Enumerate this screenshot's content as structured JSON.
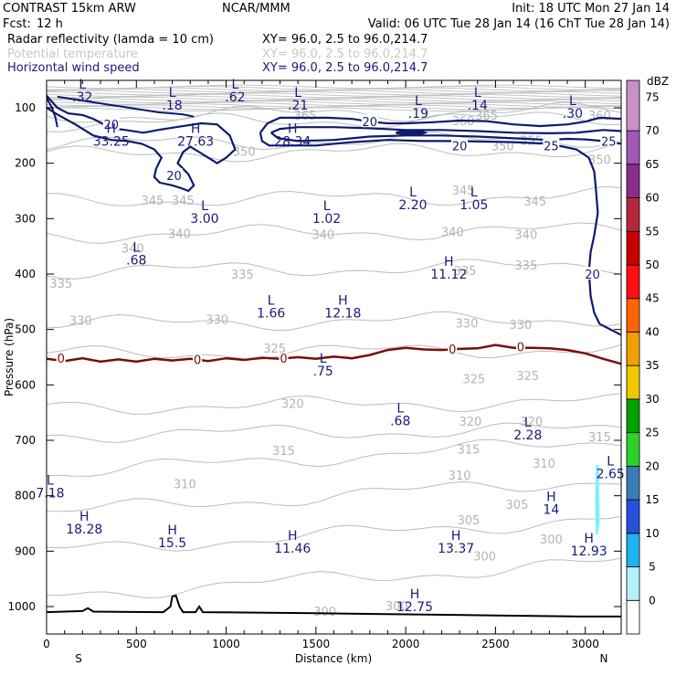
{
  "header": {
    "title": "CONTRAST 15km ARW",
    "center": "NCAR/MMM",
    "init": "Init: 18 UTC Mon 27 Jan 14",
    "fcst_label": "Fcst:",
    "fcst_value": "12 h",
    "valid": "Valid: 06 UTC Tue 28 Jan 14 (16 ChT Tue 28 Jan 14)"
  },
  "fields": [
    {
      "name": "Radar reflectivity (lamda = 10 cm)",
      "xy": "XY=  96.0,  2.5 to  96.0,214.7",
      "color": "#000000"
    },
    {
      "name": "Potential temperature",
      "xy": "XY=  96.0,  2.5 to  96.0,214.7",
      "color": "#c8c8c8"
    },
    {
      "name": "Horizontal wind speed",
      "xy": "XY=  96.0,  2.5 to  96.0,214.7",
      "color": "#1a1a7a"
    }
  ],
  "chart_data": {
    "type": "cross-section",
    "xlabel": "Distance (km)",
    "ylabel": "Pressure (hPa)",
    "xlim": [
      0,
      3200
    ],
    "ylim": [
      1050,
      55
    ],
    "x_ticks": [
      "0",
      "500",
      "1000",
      "1500",
      "2000",
      "2500",
      "3000"
    ],
    "y_ticks": [
      "100",
      "200",
      "300",
      "400",
      "500",
      "600",
      "700",
      "800",
      "900",
      "1000"
    ],
    "x_end_labels": {
      "left": "S",
      "right": "N"
    },
    "colorbar": {
      "unit": "dBZ",
      "levels": [
        "0",
        "5",
        "10",
        "15",
        "20",
        "25",
        "30",
        "35",
        "40",
        "45",
        "50",
        "55",
        "60",
        "65",
        "70",
        "75"
      ],
      "colors": [
        "#ffffff",
        "#b4f0fa",
        "#1eb4f0",
        "#2850dc",
        "#3c7cb4",
        "#2cd22c",
        "#00a000",
        "#f0c800",
        "#f0a000",
        "#ff6400",
        "#ff1010",
        "#c80000",
        "#b4283c",
        "#8c2c8c",
        "#a058b4",
        "#c890c8"
      ]
    },
    "theta_labels": [
      {
        "text": "365",
        "x": 1440,
        "p": 115
      },
      {
        "text": "365",
        "x": 2450,
        "p": 115
      },
      {
        "text": "360",
        "x": 2320,
        "p": 125
      },
      {
        "text": "360",
        "x": 3080,
        "p": 115
      },
      {
        "text": "355",
        "x": 2700,
        "p": 160
      },
      {
        "text": "350",
        "x": 1100,
        "p": 180
      },
      {
        "text": "350",
        "x": 2540,
        "p": 170
      },
      {
        "text": "350",
        "x": 3080,
        "p": 195
      },
      {
        "text": "345",
        "x": 590,
        "p": 268
      },
      {
        "text": "345",
        "x": 760,
        "p": 268
      },
      {
        "text": "345",
        "x": 2320,
        "p": 250
      },
      {
        "text": "345",
        "x": 2720,
        "p": 270
      },
      {
        "text": "340",
        "x": 480,
        "p": 355
      },
      {
        "text": "340",
        "x": 740,
        "p": 328
      },
      {
        "text": "340",
        "x": 1540,
        "p": 330
      },
      {
        "text": "340",
        "x": 2260,
        "p": 325
      },
      {
        "text": "340",
        "x": 2670,
        "p": 330
      },
      {
        "text": "335",
        "x": 80,
        "p": 418
      },
      {
        "text": "335",
        "x": 1090,
        "p": 402
      },
      {
        "text": "335",
        "x": 2330,
        "p": 395
      },
      {
        "text": "335",
        "x": 2670,
        "p": 385
      },
      {
        "text": "330",
        "x": 190,
        "p": 485
      },
      {
        "text": "330",
        "x": 950,
        "p": 483
      },
      {
        "text": "330",
        "x": 2340,
        "p": 490
      },
      {
        "text": "330",
        "x": 2640,
        "p": 492
      },
      {
        "text": "325",
        "x": 1270,
        "p": 535
      },
      {
        "text": "325",
        "x": 2380,
        "p": 590
      },
      {
        "text": "325",
        "x": 2680,
        "p": 585
      },
      {
        "text": "320",
        "x": 1370,
        "p": 635
      },
      {
        "text": "320",
        "x": 2360,
        "p": 667
      },
      {
        "text": "320",
        "x": 2700,
        "p": 667
      },
      {
        "text": "315",
        "x": 1320,
        "p": 720
      },
      {
        "text": "315",
        "x": 2350,
        "p": 717
      },
      {
        "text": "315",
        "x": 3080,
        "p": 695
      },
      {
        "text": "310",
        "x": 770,
        "p": 780
      },
      {
        "text": "310",
        "x": 2300,
        "p": 764
      },
      {
        "text": "310",
        "x": 2770,
        "p": 743
      },
      {
        "text": "305",
        "x": 2350,
        "p": 845
      },
      {
        "text": "305",
        "x": 2620,
        "p": 817
      },
      {
        "text": "300",
        "x": 2440,
        "p": 910
      },
      {
        "text": "300",
        "x": 2810,
        "p": 880
      },
      {
        "text": "300",
        "x": 1550,
        "p": 1010
      },
      {
        "text": "300",
        "x": 1950,
        "p": 1000
      }
    ],
    "hl_markers": [
      {
        "kind": "L",
        "value": ".32",
        "x": 200,
        "p": 65
      },
      {
        "kind": "L",
        "value": ".18",
        "x": 700,
        "p": 80
      },
      {
        "kind": "L",
        "value": ".62",
        "x": 1050,
        "p": 65
      },
      {
        "kind": "L",
        "value": ".21",
        "x": 1400,
        "p": 80
      },
      {
        "kind": "L",
        "value": ".19",
        "x": 2070,
        "p": 95
      },
      {
        "kind": "L",
        "value": ".14",
        "x": 2400,
        "p": 80
      },
      {
        "kind": "L",
        "value": ".30",
        "x": 2930,
        "p": 95
      },
      {
        "kind": "H",
        "value": "33.25",
        "x": 360,
        "p": 145
      },
      {
        "kind": "H",
        "value": "27.63",
        "x": 830,
        "p": 145
      },
      {
        "kind": "H",
        "value": "28.34",
        "x": 1370,
        "p": 145
      },
      {
        "kind": "L",
        "value": "3.00",
        "x": 880,
        "p": 285
      },
      {
        "kind": "L",
        "value": "1.02",
        "x": 1560,
        "p": 285
      },
      {
        "kind": "L",
        "value": "2.20",
        "x": 2040,
        "p": 260
      },
      {
        "kind": "L",
        "value": "1.05",
        "x": 2380,
        "p": 260
      },
      {
        "kind": "L",
        "value": ".68",
        "x": 500,
        "p": 360
      },
      {
        "kind": "H",
        "value": "11.12",
        "x": 2240,
        "p": 385
      },
      {
        "kind": "L",
        "value": "1.66",
        "x": 1250,
        "p": 455
      },
      {
        "kind": "H",
        "value": "12.18",
        "x": 1650,
        "p": 455
      },
      {
        "kind": "L",
        "value": ".75",
        "x": 1540,
        "p": 560
      },
      {
        "kind": "L",
        "value": ".68",
        "x": 1970,
        "p": 650
      },
      {
        "kind": "L",
        "value": "2.28",
        "x": 2680,
        "p": 675
      },
      {
        "kind": "L",
        "value": "2.65",
        "x": 3140,
        "p": 745
      },
      {
        "kind": "L",
        "value": "7.18",
        "x": 20,
        "p": 780
      },
      {
        "kind": "H",
        "value": "14",
        "x": 2810,
        "p": 810
      },
      {
        "kind": "H",
        "value": "18.28",
        "x": 210,
        "p": 845
      },
      {
        "kind": "H",
        "value": "15.5",
        "x": 700,
        "p": 870
      },
      {
        "kind": "H",
        "value": "11.46",
        "x": 1370,
        "p": 880
      },
      {
        "kind": "H",
        "value": "13.37",
        "x": 2280,
        "p": 880
      },
      {
        "kind": "H",
        "value": "12.93",
        "x": 3020,
        "p": 885
      },
      {
        "kind": "H",
        "value": "12.75",
        "x": 2050,
        "p": 985
      }
    ],
    "wind_contour_labels": [
      {
        "text": "20",
        "x": 360,
        "p": 130
      },
      {
        "text": "20",
        "x": 1800,
        "p": 125
      },
      {
        "text": "20",
        "x": 2300,
        "p": 168
      },
      {
        "text": "25",
        "x": 2810,
        "p": 168
      },
      {
        "text": "25",
        "x": 3130,
        "p": 160
      },
      {
        "text": "20",
        "x": 710,
        "p": 222
      },
      {
        "text": "20",
        "x": 3040,
        "p": 400
      }
    ],
    "zero_isotherm_labels": [
      {
        "text": "0",
        "x": 80,
        "p": 553
      },
      {
        "text": "0",
        "x": 840,
        "p": 556
      },
      {
        "text": "0",
        "x": 1320,
        "p": 553
      },
      {
        "text": "0",
        "x": 2260,
        "p": 537
      },
      {
        "text": "0",
        "x": 2640,
        "p": 533
      }
    ],
    "zero_isotherm": [
      [
        0,
        553
      ],
      [
        100,
        557
      ],
      [
        200,
        552
      ],
      [
        300,
        558
      ],
      [
        400,
        554
      ],
      [
        500,
        558
      ],
      [
        600,
        553
      ],
      [
        700,
        556
      ],
      [
        800,
        553
      ],
      [
        900,
        557
      ],
      [
        1000,
        552
      ],
      [
        1100,
        555
      ],
      [
        1200,
        551
      ],
      [
        1300,
        553
      ],
      [
        1400,
        550
      ],
      [
        1500,
        553
      ],
      [
        1600,
        549
      ],
      [
        1700,
        552
      ],
      [
        1800,
        546
      ],
      [
        1900,
        537
      ],
      [
        2000,
        533
      ],
      [
        2100,
        536
      ],
      [
        2200,
        537
      ],
      [
        2300,
        535
      ],
      [
        2400,
        534
      ],
      [
        2500,
        528
      ],
      [
        2600,
        533
      ],
      [
        2700,
        533
      ],
      [
        2800,
        534
      ],
      [
        2900,
        537
      ],
      [
        3000,
        543
      ],
      [
        3100,
        553
      ],
      [
        3200,
        562
      ]
    ],
    "terrain": [
      [
        0,
        1010
      ],
      [
        200,
        1008
      ],
      [
        230,
        1003
      ],
      [
        260,
        1009
      ],
      [
        650,
        1010
      ],
      [
        690,
        1000
      ],
      [
        700,
        982
      ],
      [
        720,
        980
      ],
      [
        740,
        1000
      ],
      [
        760,
        1010
      ],
      [
        830,
        1010
      ],
      [
        850,
        1000
      ],
      [
        870,
        1010
      ],
      [
        1500,
        1012
      ],
      [
        2000,
        1014
      ],
      [
        2500,
        1016
      ],
      [
        3000,
        1018
      ],
      [
        3200,
        1018
      ]
    ],
    "wind_20_contours": [
      [
        [
          0,
          78
        ],
        [
          60,
          100
        ],
        [
          120,
          110
        ],
        [
          200,
          113
        ],
        [
          260,
          120
        ],
        [
          360,
          137
        ],
        [
          440,
          140
        ],
        [
          540,
          145
        ],
        [
          620,
          140
        ],
        [
          700,
          136
        ],
        [
          780,
          132
        ],
        [
          860,
          128
        ],
        [
          950,
          130
        ],
        [
          1020,
          150
        ],
        [
          1050,
          175
        ],
        [
          1000,
          190
        ],
        [
          950,
          200
        ],
        [
          900,
          190
        ],
        [
          850,
          180
        ],
        [
          800,
          170
        ],
        [
          760,
          180
        ],
        [
          730,
          200
        ],
        [
          790,
          220
        ],
        [
          820,
          240
        ],
        [
          790,
          250
        ],
        [
          750,
          245
        ],
        [
          700,
          240
        ],
        [
          630,
          235
        ],
        [
          600,
          225
        ],
        [
          610,
          210
        ],
        [
          640,
          190
        ],
        [
          600,
          175
        ],
        [
          530,
          165
        ],
        [
          450,
          160
        ],
        [
          360,
          158
        ],
        [
          260,
          150
        ],
        [
          160,
          130
        ],
        [
          60,
          112
        ],
        [
          0,
          100
        ]
      ],
      [
        [
          1190,
          145
        ],
        [
          1230,
          128
        ],
        [
          1300,
          118
        ],
        [
          1420,
          118
        ],
        [
          1560,
          118
        ],
        [
          1700,
          120
        ],
        [
          1800,
          125
        ],
        [
          1900,
          128
        ],
        [
          2000,
          128
        ],
        [
          2150,
          126
        ],
        [
          2300,
          123
        ],
        [
          2450,
          124
        ],
        [
          2600,
          130
        ],
        [
          2750,
          133
        ],
        [
          2900,
          130
        ],
        [
          3000,
          125
        ],
        [
          3080,
          118
        ],
        [
          3200,
          120
        ]
      ],
      [
        [
          1190,
          145
        ],
        [
          1200,
          160
        ],
        [
          1240,
          168
        ],
        [
          1300,
          168
        ],
        [
          1500,
          168
        ],
        [
          1700,
          162
        ],
        [
          1900,
          158
        ],
        [
          2100,
          160
        ],
        [
          2300,
          160
        ],
        [
          2600,
          162
        ],
        [
          2800,
          165
        ],
        [
          2950,
          175
        ],
        [
          3020,
          190
        ],
        [
          3050,
          215
        ],
        [
          3060,
          250
        ],
        [
          3070,
          290
        ],
        [
          3050,
          330
        ],
        [
          3030,
          360
        ],
        [
          3020,
          395
        ],
        [
          3030,
          440
        ],
        [
          3050,
          470
        ],
        [
          3080,
          490
        ],
        [
          3200,
          510
        ]
      ]
    ],
    "wind_25_contours": [
      [
        [
          1250,
          145
        ],
        [
          1300,
          138
        ],
        [
          1400,
          135
        ],
        [
          1600,
          135
        ],
        [
          1800,
          137
        ],
        [
          2000,
          140
        ],
        [
          2200,
          140
        ],
        [
          2400,
          142
        ],
        [
          2600,
          145
        ],
        [
          2800,
          146
        ],
        [
          2950,
          145
        ],
        [
          3100,
          140
        ],
        [
          3200,
          142
        ]
      ],
      [
        [
          1250,
          145
        ],
        [
          1290,
          155
        ],
        [
          1400,
          160
        ],
        [
          1600,
          158
        ],
        [
          1800,
          152
        ],
        [
          2000,
          150
        ],
        [
          2200,
          150
        ],
        [
          2400,
          152
        ],
        [
          2600,
          155
        ],
        [
          2800,
          158
        ],
        [
          2900,
          156
        ],
        [
          3000,
          157
        ],
        [
          3100,
          160
        ],
        [
          3200,
          165
        ]
      ]
    ],
    "wind_30_contour": [
      [
        1950,
        144
      ],
      [
        2000,
        141
      ],
      [
        2080,
        141
      ],
      [
        2110,
        145
      ],
      [
        2080,
        148
      ],
      [
        2000,
        148
      ],
      [
        1950,
        146
      ]
    ],
    "wind_small_contours": [
      [
        [
          60,
          80
        ],
        [
          140,
          84
        ],
        [
          220,
          88
        ],
        [
          300,
          92
        ],
        [
          380,
          96
        ],
        [
          460,
          100
        ],
        [
          540,
          104
        ],
        [
          620,
          108
        ],
        [
          700,
          110
        ],
        [
          760,
          112
        ],
        [
          820,
          116
        ]
      ],
      [
        [
          0,
          82
        ],
        [
          30,
          100
        ],
        [
          50,
          118
        ],
        [
          60,
          135
        ]
      ]
    ],
    "reflectivity_patch": {
      "level": "5",
      "points": [
        [
          3060,
          745
        ],
        [
          3075,
          745
        ],
        [
          3078,
          790
        ],
        [
          3080,
          850
        ],
        [
          3070,
          870
        ],
        [
          3058,
          870
        ],
        [
          3055,
          820
        ],
        [
          3056,
          780
        ]
      ]
    }
  }
}
